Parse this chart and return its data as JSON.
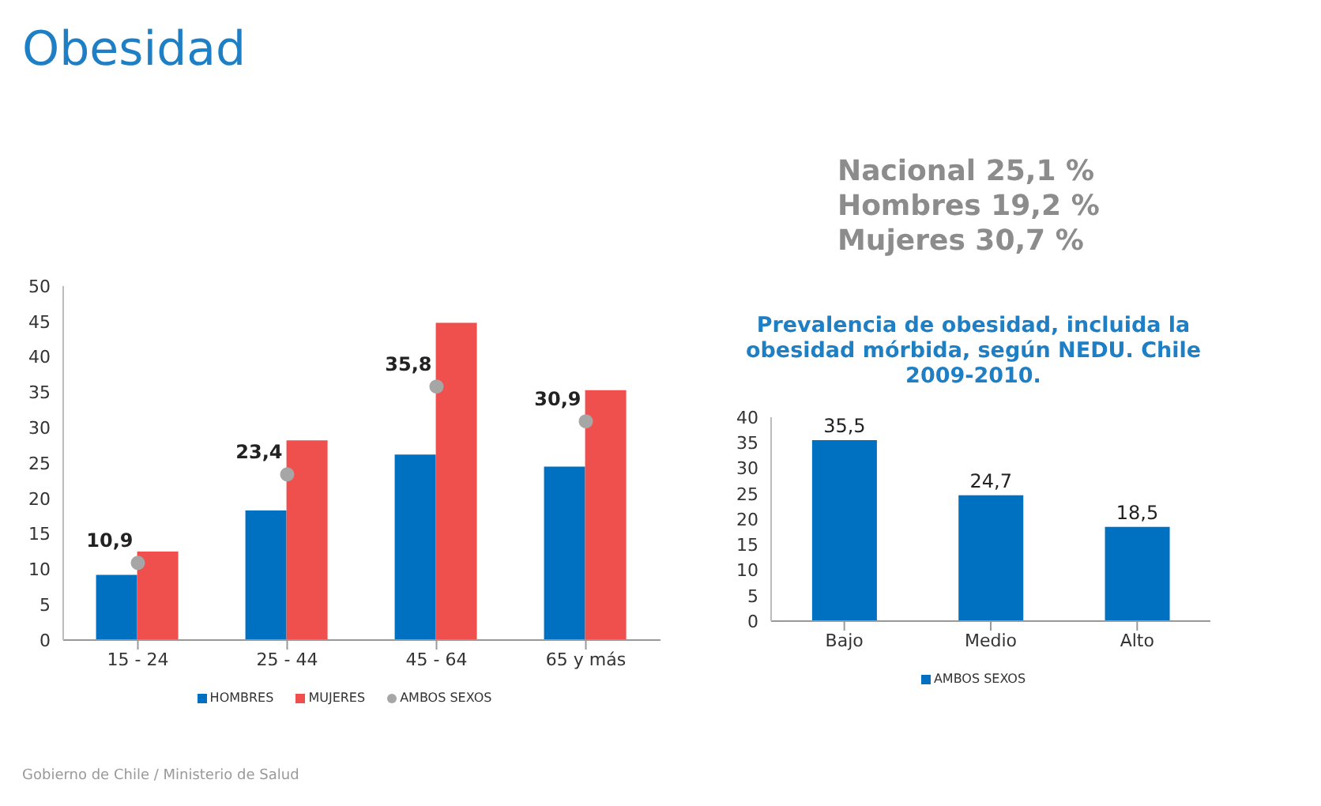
{
  "chart_data": [
    {
      "type": "bar",
      "title": "Obesidad",
      "categories": [
        "15 - 24",
        "25 - 44",
        "45 - 64",
        "65 y más"
      ],
      "ylim": [
        0,
        50
      ],
      "yticks": [
        0,
        5,
        10,
        15,
        20,
        25,
        30,
        35,
        40,
        45,
        50
      ],
      "legend": "bottom",
      "marker": "circle",
      "annotations": [
        "Nacional 25,1  %",
        "Hombres 19,2  %",
        "Mujeres 30,7  %",
        "Gobierno de Chile / Ministerio de Salud"
      ],
      "series": [
        {
          "name": "HOMBRES",
          "color": "#0070c0",
          "values": [
            9.2,
            18.3,
            26.2,
            24.5
          ]
        },
        {
          "name": "MUJERES",
          "color": "#f0504d",
          "values": [
            12.5,
            28.2,
            44.8,
            35.3
          ]
        },
        {
          "name": "AMBOS SEXOS",
          "type": "scatter",
          "color": "#a6a6a6",
          "values": [
            10.9,
            23.4,
            35.8,
            30.9
          ],
          "value_labels": [
            "10,9",
            "23,4",
            "35,8",
            "30,9"
          ]
        }
      ]
    },
    {
      "type": "bar",
      "title": "Prevalencia de obesidad, incluida la obesidad mórbida, según NEDU. Chile 2009-2010.",
      "categories": [
        "Bajo",
        "Medio",
        "Alto"
      ],
      "ylim": [
        0,
        40
      ],
      "yticks": [
        0,
        5,
        10,
        15,
        20,
        25,
        30,
        35,
        40
      ],
      "legend": "bottom",
      "series": [
        {
          "name": "AMBOS SEXOS",
          "color": "#0070c0",
          "values": [
            35.5,
            24.7,
            18.5
          ],
          "value_labels": [
            "35,5",
            "24,7",
            "18,5"
          ]
        }
      ]
    }
  ]
}
